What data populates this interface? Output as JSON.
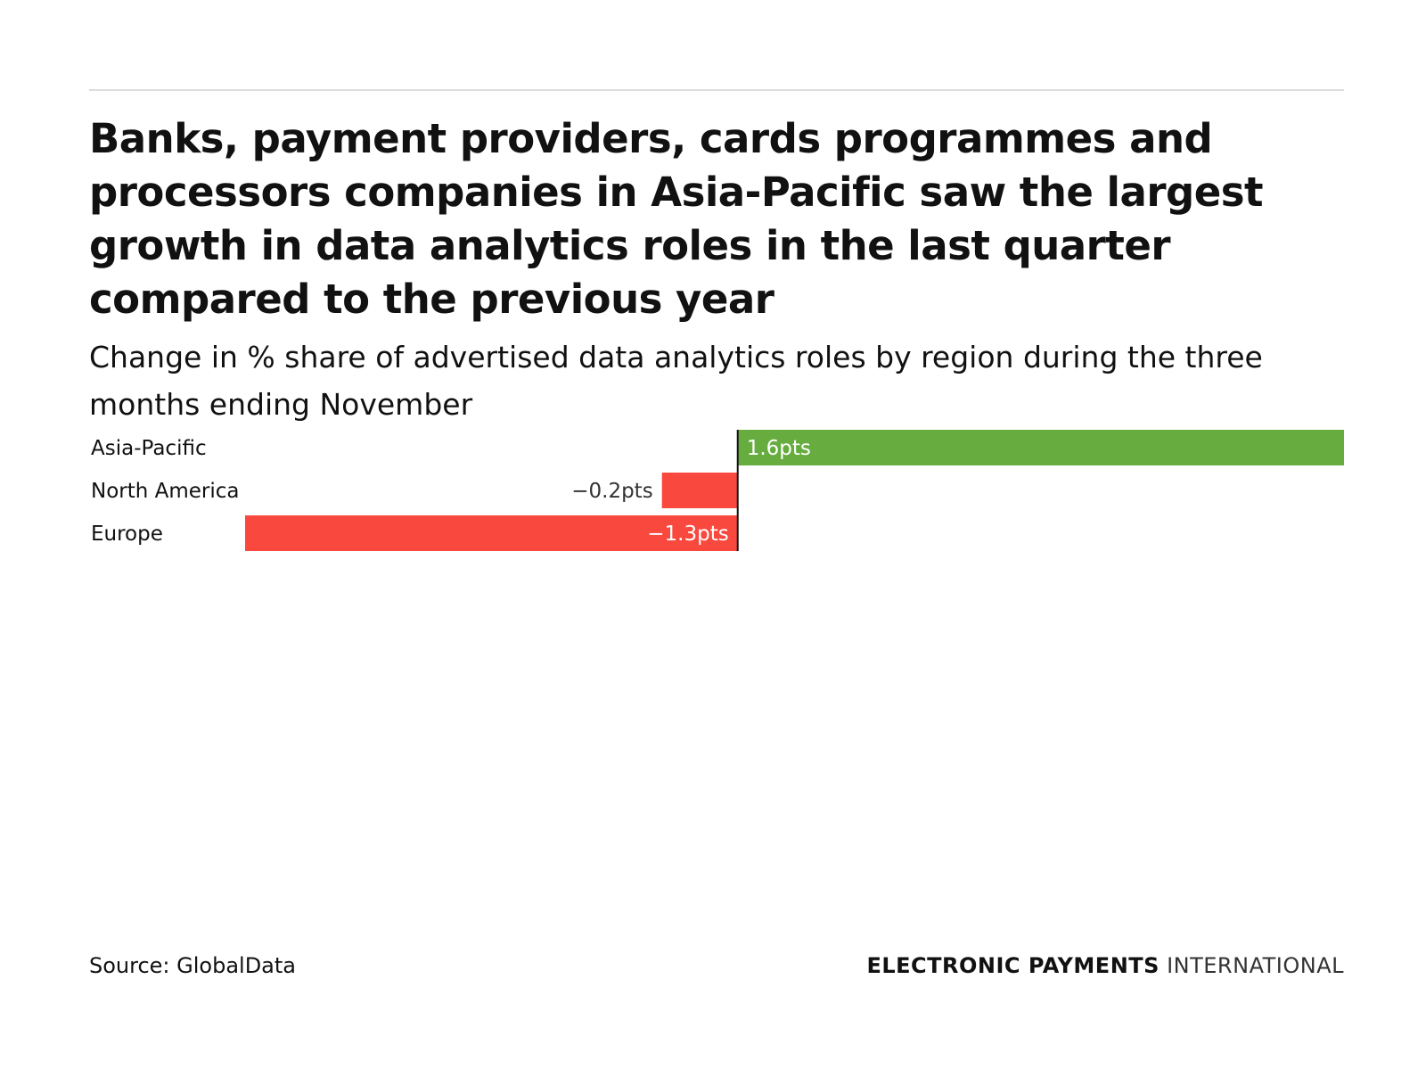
{
  "chart_data": {
    "type": "bar",
    "orientation": "horizontal",
    "title": "Banks, payment providers, cards programmes and processors companies in Asia-Pacific saw the largest growth in data analytics roles in the last quarter compared to the previous year",
    "subtitle": "Change in % share of advertised data analytics roles by region during the three months ending November",
    "categories": [
      "Asia-Pacific",
      "North America",
      "Europe"
    ],
    "values": [
      1.6,
      -0.2,
      -1.3
    ],
    "labels": [
      "1.6pts",
      "−0.2pts",
      "−1.3pts"
    ],
    "unit": "pts",
    "xlim": [
      -1.3,
      1.6
    ],
    "grid": false,
    "colors": {
      "positive": "#66ac3f",
      "negative": "#f9483e",
      "zero_line": "#111111"
    }
  },
  "footer": {
    "source": "Source: GlobalData",
    "brand_bold": "ELECTRONIC PAYMENTS",
    "brand_light": "INTERNATIONAL"
  }
}
